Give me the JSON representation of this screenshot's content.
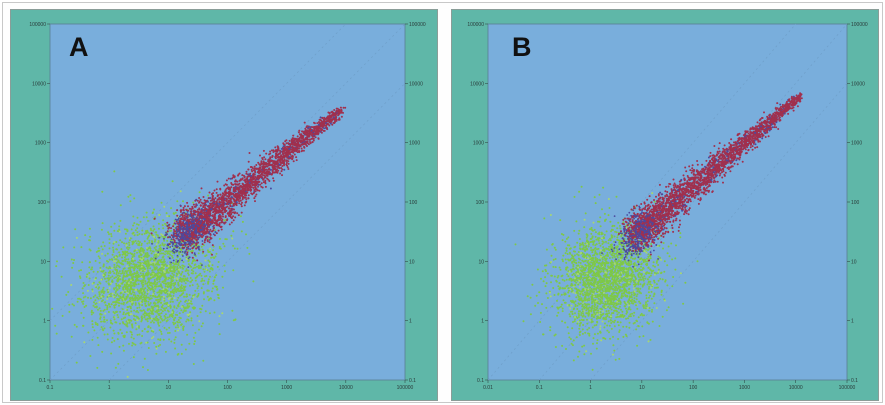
{
  "colors": {
    "panel_bg": "#5fb7a8",
    "plot_bg": "#79aedc",
    "cluster_low": "#7ec848",
    "cluster_high": "#a0304e",
    "transition": "#4a4aa0"
  },
  "chart_data": [
    {
      "type": "scatter",
      "panel_label": "A",
      "xscale": "log",
      "yscale": "log",
      "xlim": [
        0.1,
        100000
      ],
      "ylim": [
        0.1,
        100000
      ],
      "x_ticks": [
        "0.1",
        "1",
        "10",
        "100",
        "1000",
        "10000",
        "100000"
      ],
      "y_ticks": [
        "0.1",
        "1",
        "10",
        "100",
        "1000",
        "10000",
        "100000"
      ],
      "right_ticks": [
        "0.1",
        "1",
        "10",
        "100",
        "1000",
        "10000",
        "100000"
      ],
      "grid": false,
      "clusters": [
        {
          "color": "green",
          "center": [
            5,
            5
          ],
          "spread_decades": [
            0.55,
            0.5
          ],
          "count": 2300
        },
        {
          "color": "maroon",
          "from": [
            20,
            30
          ],
          "to": [
            8000,
            3500
          ],
          "width_decades": 0.22,
          "count": 2600
        }
      ]
    },
    {
      "type": "scatter",
      "panel_label": "B",
      "xscale": "log",
      "yscale": "log",
      "xlim": [
        0.01,
        100000
      ],
      "ylim": [
        0.1,
        100000
      ],
      "x_ticks": [
        "0.01",
        "0.1",
        "1",
        "10",
        "100",
        "1000",
        "10000",
        "100000"
      ],
      "y_ticks": [
        "0.1",
        "1",
        "10",
        "100",
        "1000",
        "10000",
        "100000"
      ],
      "right_ticks": [
        "0.1",
        "1",
        "10",
        "100",
        "1000",
        "10000",
        "100000"
      ],
      "grid": false,
      "clusters": [
        {
          "color": "green",
          "center": [
            2,
            5
          ],
          "spread_decades": [
            0.5,
            0.45
          ],
          "count": 2300
        },
        {
          "color": "maroon",
          "from": [
            8,
            30
          ],
          "to": [
            12000,
            6000
          ],
          "width_decades": 0.22,
          "count": 2600
        }
      ]
    }
  ]
}
